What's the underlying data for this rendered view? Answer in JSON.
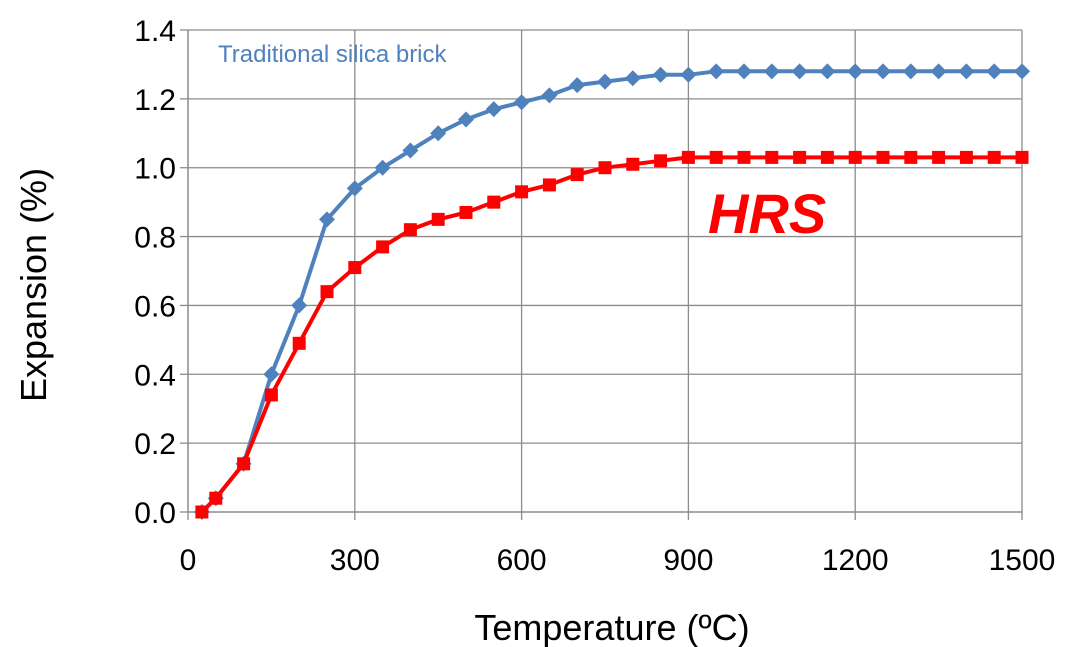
{
  "chart_data": {
    "type": "line",
    "xlabel": "Temperature (ºC)",
    "ylabel": "Expansion (%)",
    "xlim": [
      0,
      1500
    ],
    "ylim": [
      0,
      1.4
    ],
    "x_ticks": [
      "0",
      "300",
      "600",
      "900",
      "1200",
      "1500"
    ],
    "y_ticks": [
      "0.0",
      "0.2",
      "0.4",
      "0.6",
      "0.8",
      "1.0",
      "1.2",
      "1.4"
    ],
    "grid": true,
    "series": [
      {
        "name": "Traditional silica brick",
        "color": "#4F81BD",
        "marker": "diamond",
        "x": [
          25,
          50,
          100,
          150,
          200,
          250,
          300,
          350,
          400,
          450,
          500,
          550,
          600,
          650,
          700,
          750,
          800,
          850,
          900,
          950,
          1000,
          1050,
          1100,
          1150,
          1200,
          1250,
          1300,
          1350,
          1400,
          1450,
          1500
        ],
        "y": [
          0.0,
          0.04,
          0.14,
          0.4,
          0.6,
          0.85,
          0.94,
          1.0,
          1.05,
          1.1,
          1.14,
          1.17,
          1.19,
          1.21,
          1.24,
          1.25,
          1.26,
          1.27,
          1.27,
          1.28,
          1.28,
          1.28,
          1.28,
          1.28,
          1.28,
          1.28,
          1.28,
          1.28,
          1.28,
          1.28,
          1.28
        ]
      },
      {
        "name": "HRS",
        "color": "#FF0000",
        "marker": "square",
        "x": [
          25,
          50,
          100,
          150,
          200,
          250,
          300,
          350,
          400,
          450,
          500,
          550,
          600,
          650,
          700,
          750,
          800,
          850,
          900,
          950,
          1000,
          1050,
          1100,
          1150,
          1200,
          1250,
          1300,
          1350,
          1400,
          1450,
          1500
        ],
        "y": [
          0.0,
          0.04,
          0.14,
          0.34,
          0.49,
          0.64,
          0.71,
          0.77,
          0.82,
          0.85,
          0.87,
          0.9,
          0.93,
          0.95,
          0.98,
          1.0,
          1.01,
          1.02,
          1.03,
          1.03,
          1.03,
          1.03,
          1.03,
          1.03,
          1.03,
          1.03,
          1.03,
          1.03,
          1.03,
          1.03,
          1.03
        ]
      }
    ]
  }
}
